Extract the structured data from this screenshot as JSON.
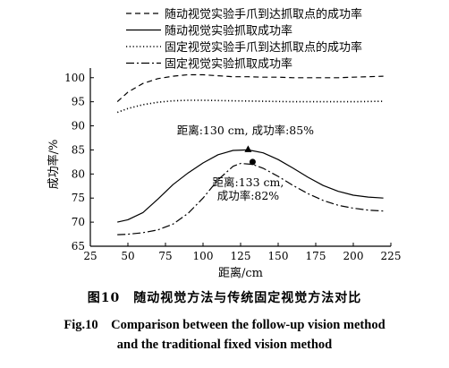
{
  "chart_data": {
    "type": "line",
    "xlabel": "距离/cm",
    "ylabel": "成功率/%",
    "xlim": [
      25,
      225
    ],
    "ylim": [
      65,
      102
    ],
    "xticks": [
      25,
      50,
      75,
      100,
      125,
      150,
      175,
      200,
      225
    ],
    "yticks": [
      65,
      70,
      75,
      80,
      85,
      90,
      95,
      100
    ],
    "grid": false,
    "legend_position": "top",
    "series": [
      {
        "name": "随动视觉实验手爪到达抓取点的成功率",
        "style": "dashed",
        "x": [
          43,
          50,
          60,
          70,
          80,
          90,
          100,
          110,
          120,
          130,
          140,
          150,
          160,
          170,
          180,
          190,
          200,
          210,
          220
        ],
        "y": [
          95.0,
          97.0,
          98.8,
          99.8,
          100.3,
          100.6,
          100.6,
          100.4,
          100.2,
          100.2,
          100.1,
          100.1,
          100.0,
          100.0,
          100.0,
          100.0,
          100.1,
          100.2,
          100.3
        ]
      },
      {
        "name": "随动视觉实验抓取成功率",
        "style": "solid",
        "x": [
          43,
          50,
          60,
          70,
          80,
          90,
          100,
          110,
          120,
          130,
          140,
          150,
          160,
          170,
          180,
          190,
          200,
          210,
          220
        ],
        "y": [
          70.0,
          70.5,
          72.0,
          74.8,
          77.8,
          80.2,
          82.3,
          84.0,
          84.9,
          85.0,
          84.4,
          83.0,
          81.2,
          79.3,
          77.6,
          76.4,
          75.6,
          75.2,
          75.0
        ]
      },
      {
        "name": "固定视觉实验手爪到达抓取点的成功率",
        "style": "dotted",
        "x": [
          43,
          50,
          60,
          70,
          80,
          90,
          100,
          120,
          140,
          160,
          180,
          200,
          220
        ],
        "y": [
          92.8,
          93.6,
          94.4,
          94.9,
          95.2,
          95.3,
          95.3,
          95.2,
          95.1,
          95.0,
          95.0,
          95.0,
          95.1
        ]
      },
      {
        "name": "固定视觉实验抓取成功率",
        "style": "dashdot",
        "x": [
          43,
          50,
          60,
          70,
          80,
          90,
          100,
          110,
          120,
          125,
          133,
          140,
          150,
          160,
          170,
          180,
          190,
          200,
          210,
          220
        ],
        "y": [
          67.4,
          67.5,
          67.8,
          68.4,
          69.6,
          71.8,
          75.0,
          78.8,
          81.6,
          82.2,
          82.0,
          81.2,
          79.5,
          77.6,
          75.9,
          74.5,
          73.5,
          72.9,
          72.5,
          72.3
        ]
      }
    ],
    "markers": [
      {
        "series": 1,
        "shape": "triangle",
        "x": 130,
        "y": 85
      },
      {
        "series": 3,
        "shape": "circle",
        "x": 133,
        "y": 82.5
      }
    ],
    "annotations": [
      {
        "text": "距离:130 cm, 成功率:85%",
        "x": 130,
        "y": 88.2
      },
      {
        "text1": "距离:133 cm,",
        "text2": "成功率:82%",
        "x": 133,
        "y": 77.5
      }
    ]
  },
  "caption": {
    "cn": "图10　随动视觉方法与传统固定视觉方法对比",
    "en_line1": "Fig.10　Comparison between the follow-up vision method",
    "en_line2": "and the traditional fixed vision method"
  }
}
